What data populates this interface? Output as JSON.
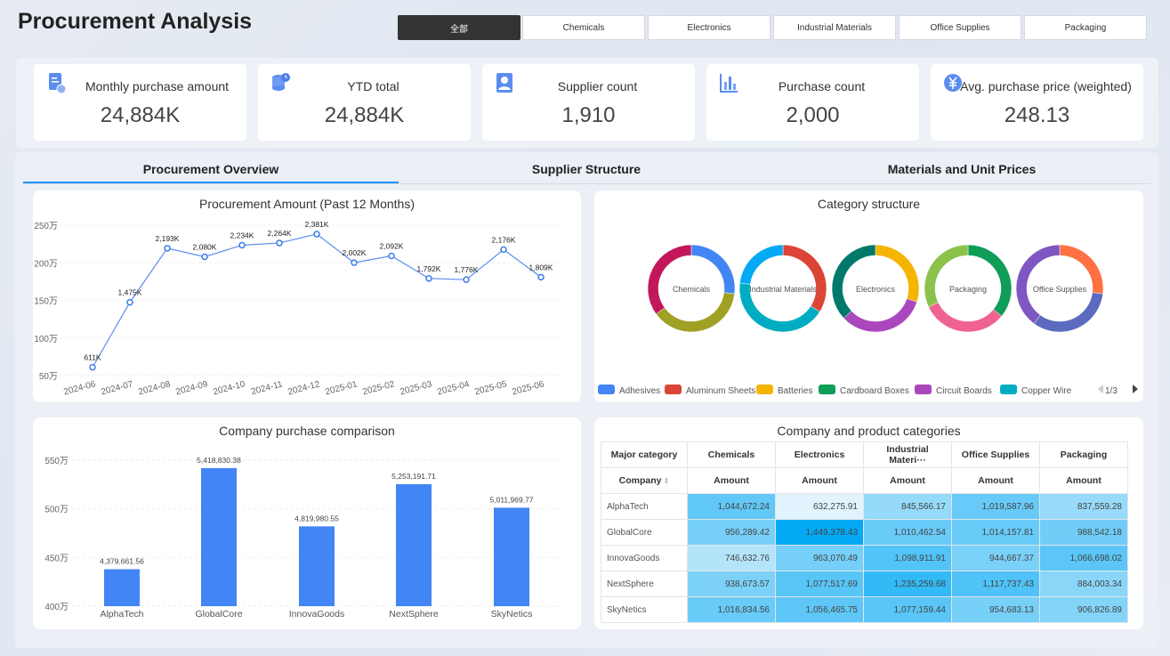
{
  "title": "Procurement Analysis",
  "filters": [
    "全部",
    "Chemicals",
    "Electronics",
    "Industrial Materials",
    "Office Supplies",
    "Packaging"
  ],
  "kpis": [
    {
      "label": "Monthly purchase amount",
      "value": "24,884K",
      "icon": "document-check-icon"
    },
    {
      "label": "YTD total",
      "value": "24,884K",
      "icon": "coins-clock-icon"
    },
    {
      "label": "Supplier count",
      "value": "1,910",
      "icon": "user-card-icon"
    },
    {
      "label": "Purchase count",
      "value": "2,000",
      "icon": "bar-chart-icon"
    },
    {
      "label": "Avg. purchase price (weighted)",
      "value": "248.13",
      "icon": "yen-icon"
    }
  ],
  "tabs": [
    "Procurement Overview",
    "Supplier Structure",
    "Materials and Unit Prices"
  ],
  "accent": "#1e90ff",
  "chart_data": [
    {
      "type": "line",
      "title": "Procurement Amount (Past 12 Months)",
      "ylabel": "万",
      "ylim": [
        50,
        250
      ],
      "yticks": [
        "50万",
        "100万",
        "150万",
        "200万",
        "250万"
      ],
      "x": [
        "2024-06",
        "2024-07",
        "2024-08",
        "2024-09",
        "2024-10",
        "2024-11",
        "2024-12",
        "2025-01",
        "2025-02",
        "2025-03",
        "2025-04",
        "2025-05",
        "2025-06"
      ],
      "values": [
        61.1,
        147.5,
        219.3,
        208.0,
        223.4,
        226.4,
        238.1,
        200.2,
        209.2,
        179.2,
        177.6,
        217.6,
        180.9
      ],
      "labels": [
        "611K",
        "1,475K",
        "2,193K",
        "2,080K",
        "2,234K",
        "2,264K",
        "2,381K",
        "2,002K",
        "2,092K",
        "1,792K",
        "1,776K",
        "2,176K",
        "1,809K"
      ]
    },
    {
      "type": "pie",
      "title": "Category structure",
      "donuts": [
        {
          "name": "Chemicals",
          "segments": [
            {
              "f": 0.27,
              "color": "#4285f4"
            },
            {
              "f": 0.38,
              "color": "#a0a025"
            },
            {
              "f": 0.35,
              "color": "#c2185b"
            }
          ]
        },
        {
          "name": "Industrial Materials",
          "segments": [
            {
              "f": 0.34,
              "color": "#db4437"
            },
            {
              "f": 0.43,
              "color": "#00acc1"
            },
            {
              "f": 0.23,
              "color": "#03a9f4"
            }
          ]
        },
        {
          "name": "Electronics",
          "segments": [
            {
              "f": 0.3,
              "color": "#f4b400"
            },
            {
              "f": 0.33,
              "color": "#ab47bc"
            },
            {
              "f": 0.37,
              "color": "#00796b"
            }
          ]
        },
        {
          "name": "Packaging",
          "segments": [
            {
              "f": 0.36,
              "color": "#0f9d58"
            },
            {
              "f": 0.32,
              "color": "#f06292"
            },
            {
              "f": 0.32,
              "color": "#8bc34a"
            }
          ]
        },
        {
          "name": "Office Supplies",
          "segments": [
            {
              "f": 0.27,
              "color": "#ff7043"
            },
            {
              "f": 0.33,
              "color": "#5c6bc0"
            },
            {
              "f": 0.4,
              "color": "#7e57c2"
            }
          ]
        }
      ],
      "legend": [
        {
          "name": "Adhesives",
          "color": "#4285f4"
        },
        {
          "name": "Aluminum Sheets",
          "color": "#db4437"
        },
        {
          "name": "Batteries",
          "color": "#f4b400"
        },
        {
          "name": "Cardboard Boxes",
          "color": "#0f9d58"
        },
        {
          "name": "Circuit Boards",
          "color": "#ab47bc"
        },
        {
          "name": "Copper Wire",
          "color": "#00acc1"
        }
      ],
      "legend_page": "1/3"
    },
    {
      "type": "bar",
      "title": "Company purchase comparison",
      "ylim": [
        400,
        550
      ],
      "yticks": [
        "400万",
        "450万",
        "500万",
        "550万"
      ],
      "categories": [
        "AlphaTech",
        "GlobalCore",
        "InnovaGoods",
        "NextSphere",
        "SkyNetics"
      ],
      "values": [
        437.966156,
        541.883038,
        481.998055,
        525.319171,
        501.196977
      ],
      "labels": [
        "4,379,661.56",
        "5,418,830.38",
        "4,819,980.55",
        "5,253,191.71",
        "5,011,969.77"
      ],
      "color": "#4285f4"
    },
    {
      "type": "table",
      "title": "Company and product categories",
      "header1": [
        "Major category",
        "Chemicals",
        "Electronics",
        "Industrial Materi···",
        "Office Supplies",
        "Packaging"
      ],
      "header2": [
        "Company",
        "Amount",
        "Amount",
        "Amount",
        "Amount",
        "Amount"
      ],
      "rows": [
        {
          "company": "AlphaTech",
          "values": [
            "1,044,672.24",
            "632,275.91",
            "845,566.17",
            "1,019,587.96",
            "837,559.28"
          ]
        },
        {
          "company": "GlobalCore",
          "values": [
            "956,289.42",
            "1,449,378.43",
            "1,010,462.54",
            "1,014,157.81",
            "988,542.18"
          ]
        },
        {
          "company": "InnovaGoods",
          "values": [
            "746,632.76",
            "963,070.49",
            "1,098,911.91",
            "944,667.37",
            "1,066,698.02"
          ]
        },
        {
          "company": "NextSphere",
          "values": [
            "938,673.57",
            "1,077,517.69",
            "1,235,259.68",
            "1,117,737.43",
            "884,003.34"
          ]
        },
        {
          "company": "SkyNetics",
          "values": [
            "1,016,834.56",
            "1,056,465.75",
            "1,077,159.44",
            "954,683.13",
            "906,826.89"
          ]
        }
      ]
    }
  ]
}
